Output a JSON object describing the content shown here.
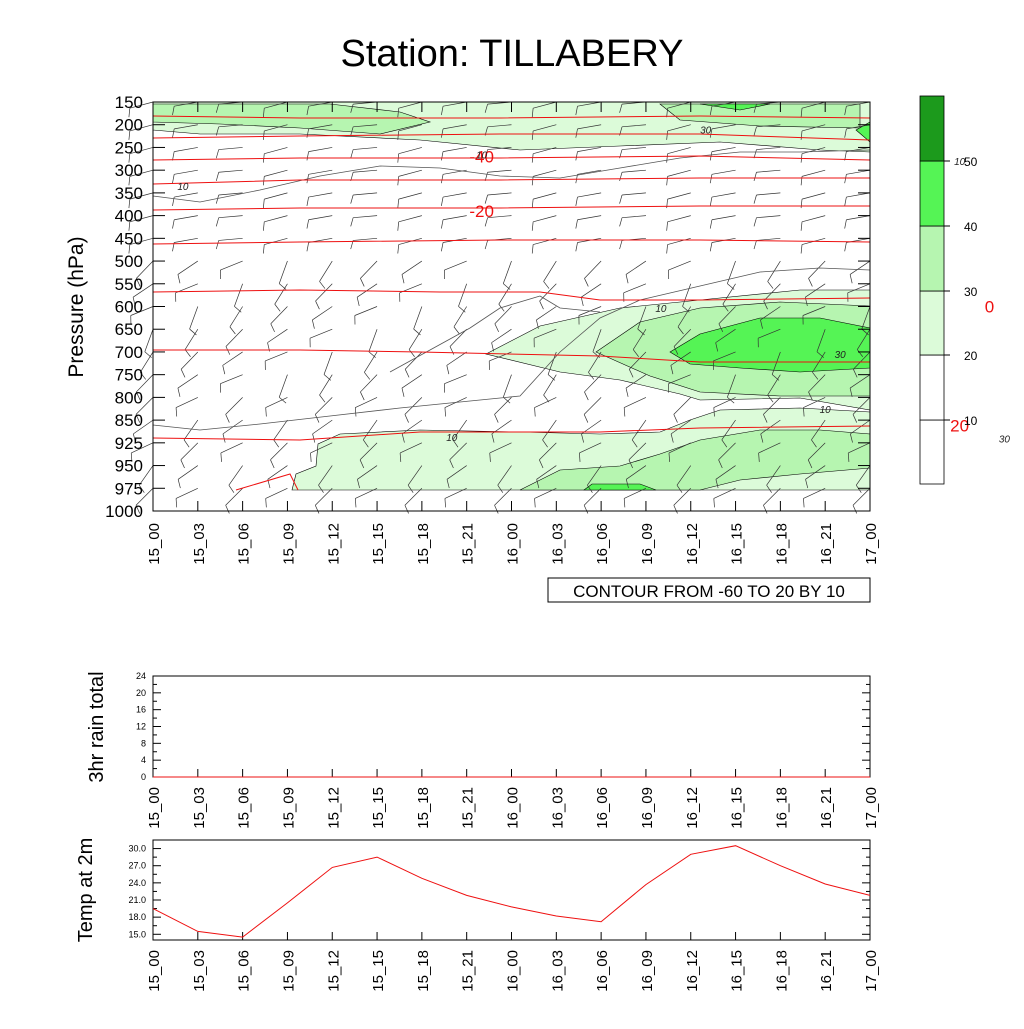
{
  "title": "Station: TILLABERY",
  "time_labels": [
    "15_00",
    "15_03",
    "15_06",
    "15_09",
    "15_12",
    "15_15",
    "15_18",
    "15_21",
    "16_00",
    "16_03",
    "16_06",
    "16_09",
    "16_12",
    "16_15",
    "16_18",
    "16_21",
    "17_00"
  ],
  "colors": {
    "fill_10_20": "#ffffff",
    "fill_20_30": "#dcfbd9",
    "fill_30_40": "#b6f5b0",
    "fill_40_50": "#55f455",
    "fill_50_plus": "#1c9a1c",
    "temp_contour": "#ee1010",
    "isotach": "#555555",
    "barb": "#222222"
  },
  "chart_data": [
    {
      "type": "contour",
      "name": "cross-section",
      "ylabel": "Pressure (hPa)",
      "pressure_levels": [
        150,
        200,
        250,
        300,
        350,
        400,
        450,
        500,
        550,
        600,
        650,
        700,
        750,
        800,
        850,
        925,
        950,
        975,
        1000
      ],
      "y_axis_labels": [
        "150",
        "200",
        "250",
        "300",
        "350",
        "400",
        "450",
        "500",
        "550",
        "600",
        "650",
        "700",
        "750",
        "800",
        "850",
        "925",
        "950",
        "975",
        "1000"
      ],
      "contour_info": "CONTOUR FROM -60 TO 20 BY 10",
      "temperature_contour_labels": [
        {
          "text": "-40",
          "time": 15.22,
          "pressure": 270
        },
        {
          "text": "-40",
          "time": 16.37,
          "pressure": 265
        },
        {
          "text": "-20",
          "time": 15.22,
          "pressure": 390
        },
        {
          "text": "-20",
          "time": 16.37,
          "pressure": 385
        },
        {
          "text": "0",
          "time": 15.68,
          "pressure": 575
        },
        {
          "text": "0",
          "time": 16.32,
          "pressure": 600
        },
        {
          "text": "20",
          "time": 15.75,
          "pressure": 875
        },
        {
          "text": "20",
          "time": 16.3,
          "pressure": 868
        }
      ],
      "wind_speed_labels": [
        {
          "text": "30",
          "time": 15.37,
          "pressure": 210
        },
        {
          "text": "30",
          "time": 16.5,
          "pressure": 195
        },
        {
          "text": "10",
          "time": 16.5,
          "pressure": 248
        },
        {
          "text": "10",
          "time": 15.22,
          "pressure": 265
        },
        {
          "text": "10",
          "time": 16.3,
          "pressure": 280
        },
        {
          "text": "10",
          "time": 15.98,
          "pressure": 332
        },
        {
          "text": "10",
          "time": 15.02,
          "pressure": 335
        },
        {
          "text": "10",
          "time": 16.68,
          "pressure": 520
        },
        {
          "text": "10",
          "time": 16.35,
          "pressure": 548
        },
        {
          "text": "30",
          "time": 16.59,
          "pressure": 580
        },
        {
          "text": "10",
          "time": 16.1,
          "pressure": 603
        },
        {
          "text": "30",
          "time": 16.38,
          "pressure": 615
        },
        {
          "text": "10",
          "time": 15.75,
          "pressure": 675
        },
        {
          "text": "30",
          "time": 16.22,
          "pressure": 705
        },
        {
          "text": "30",
          "time": 16.5,
          "pressure": 780
        },
        {
          "text": "10",
          "time": 15.45,
          "pressure": 825
        },
        {
          "text": "10",
          "time": 15.85,
          "pressure": 815
        },
        {
          "text": "10",
          "time": 15.2,
          "pressure": 905
        },
        {
          "text": "30",
          "time": 16.61,
          "pressure": 870
        },
        {
          "text": "30",
          "time": 16.33,
          "pressure": 910
        }
      ]
    },
    {
      "type": "line",
      "name": "rain",
      "ylabel": "3hr rain total",
      "yticks": [
        "0",
        "4",
        "8",
        "12",
        "16",
        "20",
        "24"
      ],
      "ylim": [
        0,
        24
      ],
      "x": [
        "15_00",
        "15_03",
        "15_06",
        "15_09",
        "15_12",
        "15_15",
        "15_18",
        "15_21",
        "16_00",
        "16_03",
        "16_06",
        "16_09",
        "16_12",
        "16_15",
        "16_18",
        "16_21",
        "17_00"
      ],
      "values": [
        0,
        0,
        0,
        0,
        0,
        0,
        0,
        0,
        0,
        0,
        0,
        0,
        0,
        0,
        0,
        0,
        0
      ]
    },
    {
      "type": "line",
      "name": "temperature",
      "ylabel": "Temp at 2m",
      "yticks": [
        "15.0",
        "18.0",
        "21.0",
        "24.0",
        "27.0",
        "30.0"
      ],
      "ylim": [
        14.0,
        31.5
      ],
      "x": [
        "15_00",
        "15_03",
        "15_06",
        "15_09",
        "15_12",
        "15_15",
        "15_18",
        "15_21",
        "16_00",
        "16_03",
        "16_06",
        "16_09",
        "16_12",
        "16_15",
        "16_18",
        "16_21",
        "17_00"
      ],
      "values": [
        19.5,
        15.5,
        14.5,
        20.5,
        26.7,
        28.5,
        24.8,
        21.8,
        19.8,
        18.2,
        17.2,
        23.7,
        29.0,
        30.5,
        27.0,
        23.8,
        21.8
      ]
    }
  ]
}
